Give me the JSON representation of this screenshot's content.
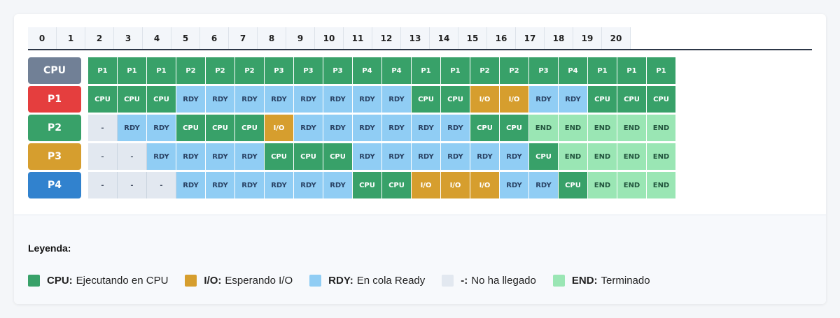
{
  "timeline": [
    "0",
    "1",
    "2",
    "3",
    "4",
    "5",
    "6",
    "7",
    "8",
    "9",
    "10",
    "11",
    "12",
    "13",
    "14",
    "15",
    "16",
    "17",
    "18",
    "19",
    "20"
  ],
  "rows": [
    {
      "label": "CPU",
      "color": "#718096",
      "cells": [
        {
          "t": "P1",
          "s": "cpu"
        },
        {
          "t": "P1",
          "s": "cpu"
        },
        {
          "t": "P1",
          "s": "cpu"
        },
        {
          "t": "P2",
          "s": "cpu"
        },
        {
          "t": "P2",
          "s": "cpu"
        },
        {
          "t": "P2",
          "s": "cpu"
        },
        {
          "t": "P3",
          "s": "cpu"
        },
        {
          "t": "P3",
          "s": "cpu"
        },
        {
          "t": "P3",
          "s": "cpu"
        },
        {
          "t": "P4",
          "s": "cpu"
        },
        {
          "t": "P4",
          "s": "cpu"
        },
        {
          "t": "P1",
          "s": "cpu"
        },
        {
          "t": "P1",
          "s": "cpu"
        },
        {
          "t": "P2",
          "s": "cpu"
        },
        {
          "t": "P2",
          "s": "cpu"
        },
        {
          "t": "P3",
          "s": "cpu"
        },
        {
          "t": "P4",
          "s": "cpu"
        },
        {
          "t": "P1",
          "s": "cpu"
        },
        {
          "t": "P1",
          "s": "cpu"
        },
        {
          "t": "P1",
          "s": "cpu"
        }
      ]
    },
    {
      "label": "P1",
      "color": "#e53e3e",
      "cells": [
        {
          "t": "CPU",
          "s": "cpu"
        },
        {
          "t": "CPU",
          "s": "cpu"
        },
        {
          "t": "CPU",
          "s": "cpu"
        },
        {
          "t": "RDY",
          "s": "rdy"
        },
        {
          "t": "RDY",
          "s": "rdy"
        },
        {
          "t": "RDY",
          "s": "rdy"
        },
        {
          "t": "RDY",
          "s": "rdy"
        },
        {
          "t": "RDY",
          "s": "rdy"
        },
        {
          "t": "RDY",
          "s": "rdy"
        },
        {
          "t": "RDY",
          "s": "rdy"
        },
        {
          "t": "RDY",
          "s": "rdy"
        },
        {
          "t": "CPU",
          "s": "cpu"
        },
        {
          "t": "CPU",
          "s": "cpu"
        },
        {
          "t": "I/O",
          "s": "io"
        },
        {
          "t": "I/O",
          "s": "io"
        },
        {
          "t": "RDY",
          "s": "rdy"
        },
        {
          "t": "RDY",
          "s": "rdy"
        },
        {
          "t": "CPU",
          "s": "cpu"
        },
        {
          "t": "CPU",
          "s": "cpu"
        },
        {
          "t": "CPU",
          "s": "cpu"
        }
      ]
    },
    {
      "label": "P2",
      "color": "#38a169",
      "cells": [
        {
          "t": "-",
          "s": "na"
        },
        {
          "t": "RDY",
          "s": "rdy"
        },
        {
          "t": "RDY",
          "s": "rdy"
        },
        {
          "t": "CPU",
          "s": "cpu"
        },
        {
          "t": "CPU",
          "s": "cpu"
        },
        {
          "t": "CPU",
          "s": "cpu"
        },
        {
          "t": "I/O",
          "s": "io"
        },
        {
          "t": "RDY",
          "s": "rdy"
        },
        {
          "t": "RDY",
          "s": "rdy"
        },
        {
          "t": "RDY",
          "s": "rdy"
        },
        {
          "t": "RDY",
          "s": "rdy"
        },
        {
          "t": "RDY",
          "s": "rdy"
        },
        {
          "t": "RDY",
          "s": "rdy"
        },
        {
          "t": "CPU",
          "s": "cpu"
        },
        {
          "t": "CPU",
          "s": "cpu"
        },
        {
          "t": "END",
          "s": "end"
        },
        {
          "t": "END",
          "s": "end"
        },
        {
          "t": "END",
          "s": "end"
        },
        {
          "t": "END",
          "s": "end"
        },
        {
          "t": "END",
          "s": "end"
        }
      ]
    },
    {
      "label": "P3",
      "color": "#d69e2e",
      "cells": [
        {
          "t": "-",
          "s": "na"
        },
        {
          "t": "-",
          "s": "na"
        },
        {
          "t": "RDY",
          "s": "rdy"
        },
        {
          "t": "RDY",
          "s": "rdy"
        },
        {
          "t": "RDY",
          "s": "rdy"
        },
        {
          "t": "RDY",
          "s": "rdy"
        },
        {
          "t": "CPU",
          "s": "cpu"
        },
        {
          "t": "CPU",
          "s": "cpu"
        },
        {
          "t": "CPU",
          "s": "cpu"
        },
        {
          "t": "RDY",
          "s": "rdy"
        },
        {
          "t": "RDY",
          "s": "rdy"
        },
        {
          "t": "RDY",
          "s": "rdy"
        },
        {
          "t": "RDY",
          "s": "rdy"
        },
        {
          "t": "RDY",
          "s": "rdy"
        },
        {
          "t": "RDY",
          "s": "rdy"
        },
        {
          "t": "CPU",
          "s": "cpu"
        },
        {
          "t": "END",
          "s": "end"
        },
        {
          "t": "END",
          "s": "end"
        },
        {
          "t": "END",
          "s": "end"
        },
        {
          "t": "END",
          "s": "end"
        }
      ]
    },
    {
      "label": "P4",
      "color": "#3182ce",
      "cells": [
        {
          "t": "-",
          "s": "na"
        },
        {
          "t": "-",
          "s": "na"
        },
        {
          "t": "-",
          "s": "na"
        },
        {
          "t": "RDY",
          "s": "rdy"
        },
        {
          "t": "RDY",
          "s": "rdy"
        },
        {
          "t": "RDY",
          "s": "rdy"
        },
        {
          "t": "RDY",
          "s": "rdy"
        },
        {
          "t": "RDY",
          "s": "rdy"
        },
        {
          "t": "RDY",
          "s": "rdy"
        },
        {
          "t": "CPU",
          "s": "cpu"
        },
        {
          "t": "CPU",
          "s": "cpu"
        },
        {
          "t": "I/O",
          "s": "io"
        },
        {
          "t": "I/O",
          "s": "io"
        },
        {
          "t": "I/O",
          "s": "io"
        },
        {
          "t": "RDY",
          "s": "rdy"
        },
        {
          "t": "RDY",
          "s": "rdy"
        },
        {
          "t": "CPU",
          "s": "cpu"
        },
        {
          "t": "END",
          "s": "end"
        },
        {
          "t": "END",
          "s": "end"
        },
        {
          "t": "END",
          "s": "end"
        }
      ]
    }
  ],
  "legend": {
    "title": "Leyenda:",
    "items": [
      {
        "code": "CPU:",
        "text": "Ejecutando en CPU",
        "color": "#38a169"
      },
      {
        "code": "I/O:",
        "text": "Esperando I/O",
        "color": "#d69e2e"
      },
      {
        "code": "RDY:",
        "text": "En cola Ready",
        "color": "#90cdf4"
      },
      {
        "code": "-:",
        "text": "No ha llegado",
        "color": "#e2e8f0"
      },
      {
        "code": "END:",
        "text": "Terminado",
        "color": "#9ae6b4"
      }
    ]
  }
}
